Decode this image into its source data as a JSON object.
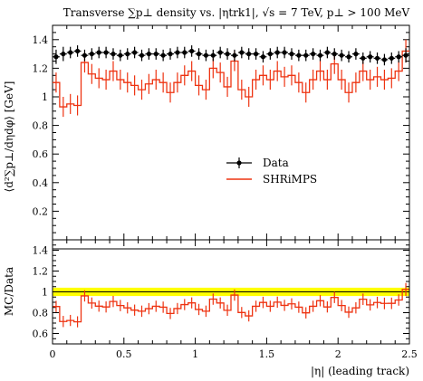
{
  "chart_data": {
    "type": "line",
    "title": "Transverse ∑p⊥ density vs. |ηtrk1|, √s = 7 TeV, p⊥ > 100 MeV",
    "xlabel": "|η| (leading track)",
    "ylabel": "⟨d²∑p⊥/dηdφ⟩ [GeV]",
    "ratio_ylabel": "MC/Data",
    "xlim": [
      0,
      2.5
    ],
    "ylim": [
      0,
      1.5
    ],
    "ratio_ylim": [
      0.5,
      1.5
    ],
    "x_ticks": [
      "0",
      "0.5",
      "1",
      "1.5",
      "2",
      "2.5"
    ],
    "x_tick_values": [
      0,
      0.5,
      1,
      1.5,
      2,
      2.5
    ],
    "y_ticks": [
      "0.2",
      "0.4",
      "0.6",
      "0.8",
      "1",
      "1.2",
      "1.4"
    ],
    "y_tick_values": [
      0.2,
      0.4,
      0.6,
      0.8,
      1.0,
      1.2,
      1.4
    ],
    "ratio_y_ticks": [
      "0.6",
      "0.8",
      "1",
      "1.2",
      "1.4"
    ],
    "ratio_y_tick_values": [
      0.6,
      0.8,
      1.0,
      1.2,
      1.4
    ],
    "legend_position": "center-right",
    "ratio_band": [
      0.96,
      1.04
    ],
    "bin_edges": [
      0.0,
      0.05,
      0.1,
      0.15,
      0.2,
      0.25,
      0.3,
      0.35,
      0.4,
      0.45,
      0.5,
      0.55,
      0.6,
      0.65,
      0.7,
      0.75,
      0.8,
      0.85,
      0.9,
      0.95,
      1.0,
      1.05,
      1.1,
      1.15,
      1.2,
      1.25,
      1.3,
      1.35,
      1.4,
      1.45,
      1.5,
      1.55,
      1.6,
      1.65,
      1.7,
      1.75,
      1.8,
      1.85,
      1.9,
      1.95,
      2.0,
      2.05,
      2.1,
      2.15,
      2.2,
      2.25,
      2.3,
      2.35,
      2.4,
      2.45,
      2.5
    ],
    "series": [
      {
        "name": "Data",
        "color": "#000000",
        "marker": "circle",
        "values": [
          1.28,
          1.3,
          1.31,
          1.32,
          1.29,
          1.3,
          1.31,
          1.31,
          1.3,
          1.29,
          1.3,
          1.31,
          1.29,
          1.3,
          1.3,
          1.29,
          1.3,
          1.31,
          1.31,
          1.32,
          1.3,
          1.29,
          1.29,
          1.31,
          1.3,
          1.29,
          1.31,
          1.3,
          1.3,
          1.28,
          1.3,
          1.31,
          1.31,
          1.3,
          1.29,
          1.29,
          1.3,
          1.29,
          1.31,
          1.3,
          1.29,
          1.28,
          1.3,
          1.27,
          1.28,
          1.27,
          1.26,
          1.27,
          1.28,
          1.29
        ],
        "errors": [
          0.05,
          0.05,
          0.04,
          0.04,
          0.04,
          0.04,
          0.04,
          0.04,
          0.04,
          0.04,
          0.04,
          0.04,
          0.04,
          0.04,
          0.04,
          0.04,
          0.04,
          0.04,
          0.04,
          0.04,
          0.04,
          0.04,
          0.04,
          0.04,
          0.04,
          0.04,
          0.04,
          0.04,
          0.04,
          0.04,
          0.04,
          0.04,
          0.04,
          0.04,
          0.04,
          0.04,
          0.04,
          0.04,
          0.04,
          0.04,
          0.04,
          0.04,
          0.04,
          0.04,
          0.04,
          0.04,
          0.04,
          0.04,
          0.04,
          0.05
        ]
      },
      {
        "name": "SHRiMPS",
        "color": "#ee3311",
        "marker": "histogram",
        "values": [
          1.1,
          0.93,
          0.95,
          0.94,
          1.24,
          1.16,
          1.13,
          1.12,
          1.18,
          1.12,
          1.1,
          1.08,
          1.05,
          1.09,
          1.12,
          1.1,
          1.03,
          1.1,
          1.15,
          1.18,
          1.08,
          1.05,
          1.2,
          1.17,
          1.07,
          1.25,
          1.05,
          1.0,
          1.12,
          1.15,
          1.12,
          1.18,
          1.14,
          1.15,
          1.1,
          1.03,
          1.12,
          1.18,
          1.12,
          1.23,
          1.12,
          1.03,
          1.1,
          1.18,
          1.12,
          1.14,
          1.12,
          1.13,
          1.18,
          1.32
        ],
        "errors": [
          0.07,
          0.07,
          0.07,
          0.07,
          0.07,
          0.07,
          0.07,
          0.07,
          0.07,
          0.07,
          0.07,
          0.07,
          0.07,
          0.07,
          0.07,
          0.07,
          0.07,
          0.07,
          0.07,
          0.07,
          0.07,
          0.07,
          0.07,
          0.07,
          0.07,
          0.07,
          0.07,
          0.07,
          0.07,
          0.07,
          0.07,
          0.07,
          0.07,
          0.07,
          0.07,
          0.07,
          0.07,
          0.07,
          0.07,
          0.07,
          0.07,
          0.07,
          0.07,
          0.07,
          0.07,
          0.07,
          0.07,
          0.07,
          0.07,
          0.08
        ]
      }
    ]
  }
}
